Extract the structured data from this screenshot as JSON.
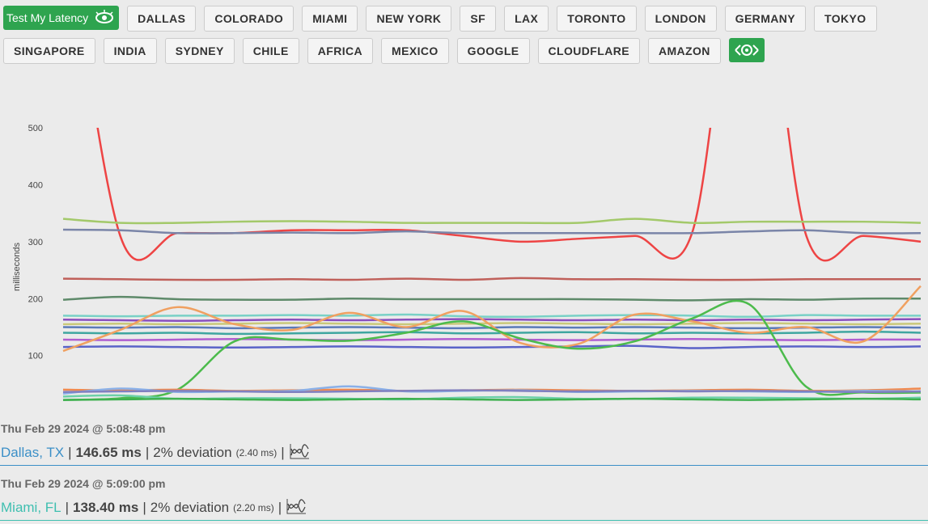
{
  "header": {
    "test_button": "Test My Latency",
    "button_rows": [
      [
        "DALLAS",
        "COLORADO",
        "MIAMI",
        "NEW YORK",
        "SF",
        "LAX",
        "TORONTO",
        "LONDON",
        "GERMANY",
        "TOKYO"
      ],
      [
        "SINGAPORE",
        "INDIA",
        "SYDNEY",
        "CHILE",
        "AFRICA",
        "MEXICO",
        "GOOGLE",
        "CLOUDFLARE",
        "AMAZON"
      ]
    ]
  },
  "chart_data": {
    "type": "line",
    "y_label": "milliseconds",
    "categories": [
      null,
      null,
      null,
      null,
      null,
      null,
      null,
      null,
      null,
      null,
      null,
      null,
      null,
      null,
      null,
      null
    ],
    "ylim": [
      20,
      500
    ],
    "yticks": [
      100,
      200,
      300,
      400,
      500
    ],
    "grid": false,
    "series": [
      {
        "color": "#ee4444",
        "values": [
          900,
          310,
          315,
          315,
          320,
          320,
          320,
          310,
          300,
          305,
          310,
          315,
          900,
          310,
          310,
          300
        ]
      },
      {
        "color": "#a3c96a",
        "values": [
          340,
          333,
          333,
          335,
          336,
          335,
          333,
          333,
          333,
          333,
          340,
          333,
          335,
          335,
          335,
          333
        ]
      },
      {
        "color": "#7a85a8",
        "values": [
          321,
          320,
          315,
          315,
          316,
          315,
          318,
          315,
          315,
          315,
          315,
          315,
          318,
          320,
          315,
          315
        ]
      },
      {
        "color": "#c0605a",
        "values": [
          235,
          234,
          233,
          233,
          234,
          233,
          235,
          233,
          236,
          234,
          234,
          233,
          233,
          234,
          234,
          234
        ]
      },
      {
        "color": "#5e8a6a",
        "values": [
          198,
          203,
          199,
          198,
          198,
          200,
          199,
          199,
          199,
          199,
          198,
          197,
          199,
          198,
          200,
          200
        ]
      },
      {
        "color": "#79d1c6",
        "values": [
          170,
          169,
          170,
          170,
          171,
          170,
          172,
          169,
          168,
          170,
          171,
          170,
          168,
          171,
          170,
          170
        ]
      },
      {
        "color": "#8a4fbd",
        "values": [
          163,
          162,
          161,
          162,
          163,
          162,
          163,
          164,
          163,
          162,
          163,
          162,
          163,
          162,
          163,
          164
        ]
      },
      {
        "color": "#c9c87a",
        "values": [
          155,
          156,
          155,
          156,
          157,
          156,
          155,
          156,
          157,
          156,
          155,
          156,
          157,
          156,
          155,
          156
        ]
      },
      {
        "color": "#5a7ab8",
        "values": [
          150,
          149,
          150,
          148,
          149,
          150,
          149,
          148,
          150,
          149,
          150,
          149,
          148,
          149,
          150,
          149
        ]
      },
      {
        "color": "#3fa6a0",
        "values": [
          140,
          139,
          140,
          138,
          139,
          140,
          141,
          139,
          140,
          141,
          139,
          140,
          139,
          140,
          142,
          140
        ]
      },
      {
        "color": "#b05ed0",
        "values": [
          128,
          127,
          128,
          129,
          128,
          127,
          128,
          129,
          128,
          127,
          128,
          129,
          128,
          127,
          128,
          128
        ]
      },
      {
        "color": "#5a63c8",
        "values": [
          115,
          116,
          115,
          114,
          115,
          116,
          115,
          114,
          115,
          116,
          117,
          113,
          115,
          116,
          115,
          116
        ]
      },
      {
        "color": "#f0a060",
        "values": [
          108,
          145,
          185,
          155,
          145,
          175,
          150,
          178,
          122,
          120,
          172,
          160,
          140,
          150,
          125,
          222
        ]
      },
      {
        "color": "#4cbb4c",
        "values": [
          22,
          25,
          40,
          125,
          128,
          126,
          140,
          160,
          130,
          112,
          125,
          165,
          190,
          45,
          35,
          35
        ]
      },
      {
        "color": "#f08a50",
        "values": [
          40,
          39,
          40,
          38,
          39,
          40,
          38,
          39,
          40,
          39,
          38,
          39,
          40,
          38,
          39,
          42
        ]
      },
      {
        "color": "#8ab0e8",
        "values": [
          33,
          42,
          36,
          37,
          38,
          46,
          37,
          38,
          39,
          36,
          37,
          38,
          37,
          36,
          38,
          37
        ]
      },
      {
        "color": "#8080c0",
        "values": [
          36,
          37,
          38,
          37,
          36,
          37,
          38,
          39,
          38,
          37,
          38,
          37,
          38,
          37,
          36,
          37
        ]
      },
      {
        "color": "#6cd0a8",
        "values": [
          28,
          30,
          24,
          25,
          25,
          24,
          23,
          26,
          27,
          24,
          24,
          26,
          26,
          25,
          24,
          26
        ]
      },
      {
        "color": "#3fb050",
        "values": [
          22,
          23,
          24,
          23,
          22,
          23,
          24,
          23,
          22,
          23,
          24,
          23,
          22,
          23,
          24,
          23
        ]
      }
    ]
  },
  "separator": "|",
  "results": [
    {
      "date": "Thu Feb 29 2024 @ 5:08:48 pm",
      "location": "Dallas, TX",
      "latency": "146.65 ms",
      "deviation": "2% deviation",
      "deviation_ms": "(2.40 ms)",
      "color": "#3b8fc7"
    },
    {
      "date": "Thu Feb 29 2024 @ 5:09:00 pm",
      "location": "Miami, FL",
      "latency": "138.40 ms",
      "deviation": "2% deviation",
      "deviation_ms": "(2.20 ms)",
      "color": "#3fbfb0"
    }
  ]
}
